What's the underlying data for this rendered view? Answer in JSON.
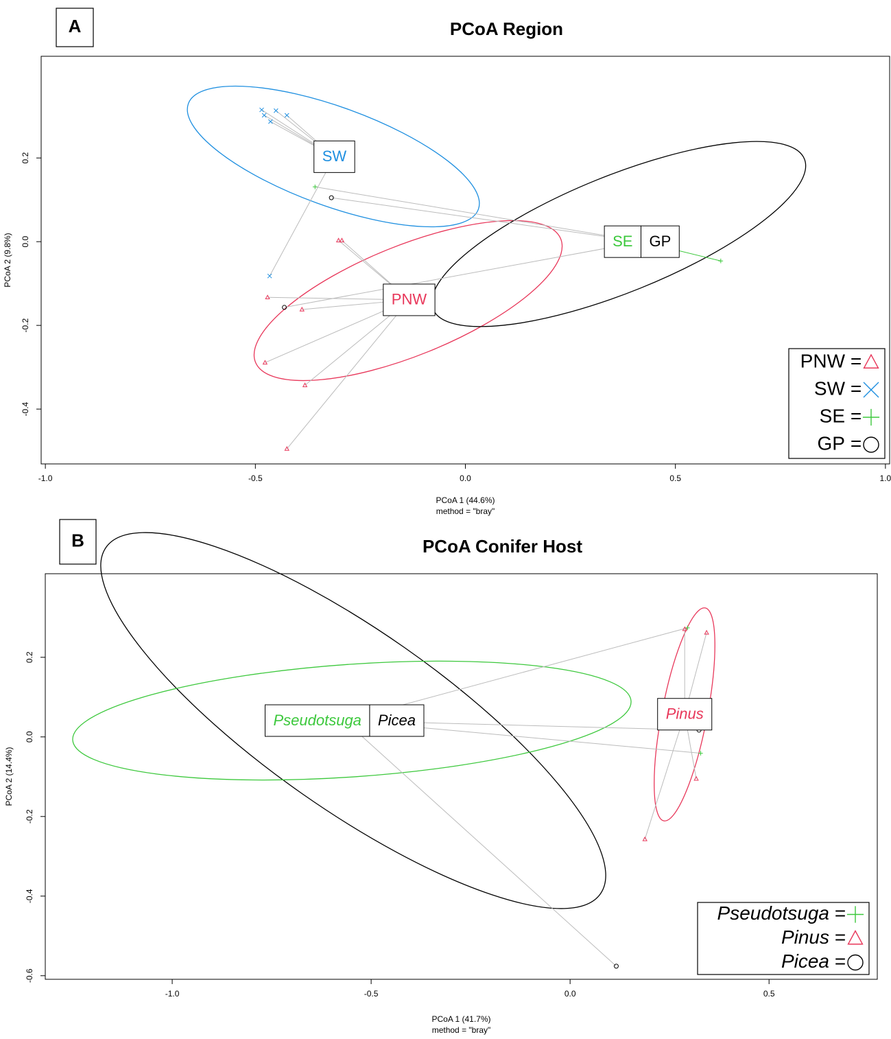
{
  "chart_data": [
    {
      "type": "scatter",
      "panel": "A",
      "title": "PCoA Region",
      "x_label": "PCoA 1 (44.6%)",
      "x_sublabel": "method = \"bray\"",
      "y_label": "PCoA 2 (9.8%)",
      "xlim": [
        -1.01,
        1.01
      ],
      "ylim": [
        -0.531,
        0.443
      ],
      "xticks": [
        {
          "value": -1.0,
          "label": "-1.0"
        },
        -0.5,
        {
          "value": 0,
          "label": "0.0"
        },
        0.5,
        {
          "value": 1.0,
          "label": "1.0"
        }
      ],
      "yticks": [
        -0.4,
        -0.2,
        {
          "value": 0,
          "label": "0.0"
        },
        0.2
      ],
      "legend": "bottom-right",
      "legend_separator": "=",
      "series": [
        {
          "name": "PNW",
          "color": "#e8375a",
          "marker": "triangle",
          "x": [
            -0.302,
            -0.294,
            -0.471,
            -0.389,
            -0.477,
            -0.382,
            -0.425
          ],
          "y": [
            0.003,
            0.003,
            -0.133,
            -0.162,
            -0.289,
            -0.343,
            -0.495
          ],
          "centroid": [
            -0.134,
            -0.139
          ]
        },
        {
          "name": "SW",
          "color": "#1e8fe0",
          "marker": "cross",
          "x": [
            -0.485,
            -0.451,
            -0.479,
            -0.425,
            -0.464,
            -0.466
          ],
          "y": [
            0.315,
            0.313,
            0.302,
            0.302,
            0.287,
            -0.082
          ],
          "centroid": [
            -0.312,
            0.203
          ]
        },
        {
          "name": "SE",
          "color": "#3cc83c",
          "marker": "plus",
          "x": [
            -0.358,
            0.608
          ],
          "y": [
            0.131,
            -0.046
          ],
          "centroid": [
            0.42,
            0.0
          ]
        },
        {
          "name": "GP",
          "color": "#000000",
          "marker": "circle",
          "x": [
            -0.319,
            -0.431
          ],
          "y": [
            0.105,
            -0.157
          ],
          "centroid": [
            0.42,
            0.0
          ]
        }
      ]
    },
    {
      "type": "scatter",
      "panel": "B",
      "title": "PCoA Conifer Host",
      "x_label": "PCoA 1 (41.7%)",
      "x_sublabel": "method = \"bray\"",
      "y_label": "PCoA 2 (14.4%)",
      "xlim": [
        -1.319,
        0.772
      ],
      "ylim": [
        -0.609,
        0.41
      ],
      "xticks": [
        {
          "value": -1.0,
          "label": "-1.0"
        },
        -0.5,
        {
          "value": 0,
          "label": "0.0"
        },
        0.5
      ],
      "yticks": [
        -0.6,
        -0.4,
        -0.2,
        {
          "value": 0,
          "label": "0.0"
        },
        0.2
      ],
      "legend": "bottom-right",
      "legend_separator": "=",
      "label_style": "italic",
      "series": [
        {
          "name": "Pseudotsuga",
          "color": "#3cc83c",
          "marker": "plus",
          "x": [
            0.295,
            0.328
          ],
          "y": [
            0.274,
            -0.041
          ],
          "centroid": [
            -0.567,
            0.041
          ]
        },
        {
          "name": "Pinus",
          "color": "#e8375a",
          "marker": "triangle",
          "x": [
            0.288,
            0.343,
            0.317,
            0.188
          ],
          "y": [
            0.271,
            0.262,
            -0.105,
            -0.257
          ],
          "centroid": [
            0.288,
            0.057
          ]
        },
        {
          "name": "Picea",
          "color": "#000000",
          "marker": "circle",
          "x": [
            0.324,
            0.116
          ],
          "y": [
            0.017,
            -0.576
          ],
          "centroid": [
            -0.567,
            0.041
          ]
        }
      ]
    }
  ]
}
